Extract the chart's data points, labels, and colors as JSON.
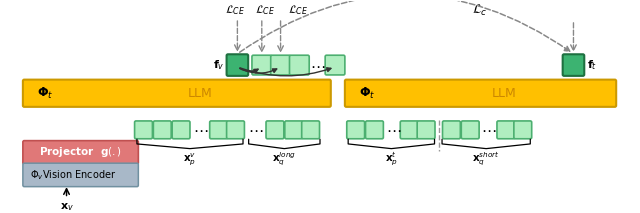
{
  "fig_width": 6.4,
  "fig_height": 2.13,
  "dpi": 100,
  "bg_color": "#ffffff",
  "llm_color": "#FFC000",
  "llm_edge_color": "#CC9900",
  "projector_color": "#E07878",
  "projector_edge_color": "#C05050",
  "vision_encoder_color": "#A8B8C8",
  "vision_encoder_edge_color": "#7090A0",
  "token_light_face": "#B0EEC0",
  "token_light_edge": "#4CAF70",
  "token_dark_face": "#3CB371",
  "token_dark_edge": "#1E7040",
  "llm_text_color": "#CC8800",
  "arrow_gray": "#888888",
  "arrow_dark": "#333333",
  "loss_fontsize": 8,
  "label_fontsize": 7.5,
  "llm_fontsize": 9,
  "proj_fontsize": 7.5,
  "ve_fontsize": 7.0,
  "tok_size": 16,
  "out_tok_size": 18,
  "fv_tok_size": 20
}
